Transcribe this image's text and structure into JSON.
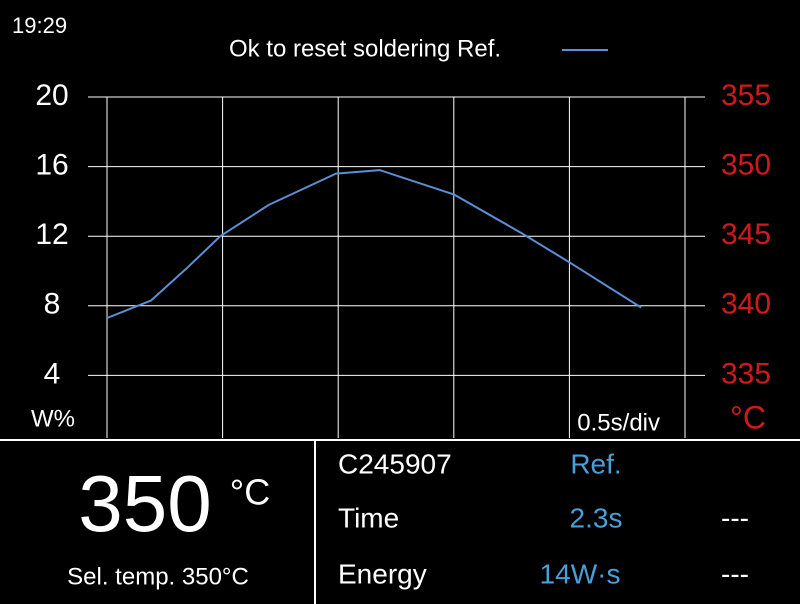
{
  "status": {
    "time": "19:29"
  },
  "chart_data": {
    "type": "line",
    "title": "Ok to reset soldering Ref.",
    "y_label": "W%",
    "y2_label": "°C",
    "x_label": "0.5s/div",
    "xlim": [
      0,
      2.5
    ],
    "xticks": [
      0,
      0.5,
      1,
      1.5,
      2,
      2.5
    ],
    "ylim": [
      0,
      20
    ],
    "yticks": [
      4,
      8,
      12,
      16,
      20
    ],
    "y2lim": [
      330,
      355
    ],
    "y2ticks": [
      335,
      340,
      345,
      350,
      355
    ],
    "grid": true,
    "series": [
      {
        "name": "Ok to reset soldering Ref.",
        "color": "#5b8fd6",
        "x": [
          0,
          0.19,
          0.34,
          0.49,
          0.7,
          0.99,
          1.18,
          1.5,
          1.79,
          2.0,
          2.31
        ],
        "values": [
          7.3,
          8.3,
          10.1,
          12.0,
          13.8,
          15.6,
          15.8,
          14.4,
          12.2,
          10.5,
          7.9
        ]
      }
    ]
  },
  "panel": {
    "temp": "350",
    "temp_unit": "°C",
    "selected": "Sel. temp. 350°C",
    "header": [
      "C245907",
      "Ref."
    ],
    "rows": [
      [
        "Time",
        "2.3s",
        "---"
      ],
      [
        "Energy",
        "14W·s",
        "---"
      ]
    ]
  }
}
